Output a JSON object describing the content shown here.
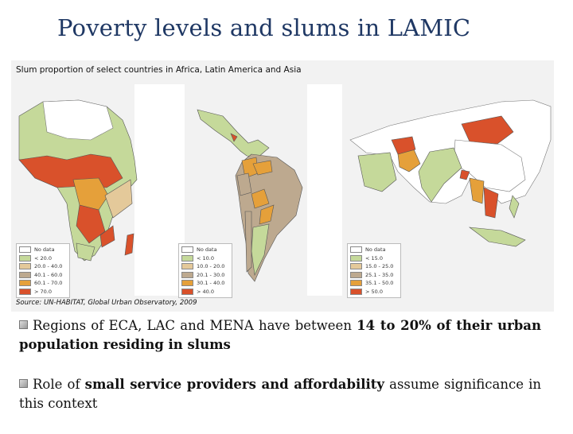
{
  "title": "Poverty levels and slums in LAMIC",
  "figure": {
    "title": "Slum proportion of select countries in Africa, Latin America and Asia",
    "source": "Source: UN-HABITAT, Global Urban Observatory, 2009",
    "inset_heading": "",
    "legends": {
      "africa": [
        "No data",
        "< 20.0",
        "20.0 - 40.0",
        "40.1 - 60.0",
        "60.1 - 70.0",
        "> 70.0"
      ],
      "latin_america": [
        "No data",
        "< 10.0",
        "10.0 - 20.0",
        "20.1 - 30.0",
        "30.1 - 40.0",
        "> 40.0"
      ],
      "asia": [
        "No data",
        "< 15.0",
        "15.0 - 25.0",
        "25.1 - 35.0",
        "35.1 - 50.0",
        "> 50.0"
      ]
    },
    "colors": [
      "#ffffff",
      "#c5d99a",
      "#e4c99a",
      "#bda98f",
      "#e5a03a",
      "#d9512b"
    ]
  },
  "bullets": [
    {
      "before": "Regions of ECA, LAC and MENA have between ",
      "bold": "14 to 20% of their urban population residing in slums",
      "after": ""
    },
    {
      "before": "Role of ",
      "bold": "small service providers and affordability",
      "after": " assume significance in this context"
    }
  ]
}
